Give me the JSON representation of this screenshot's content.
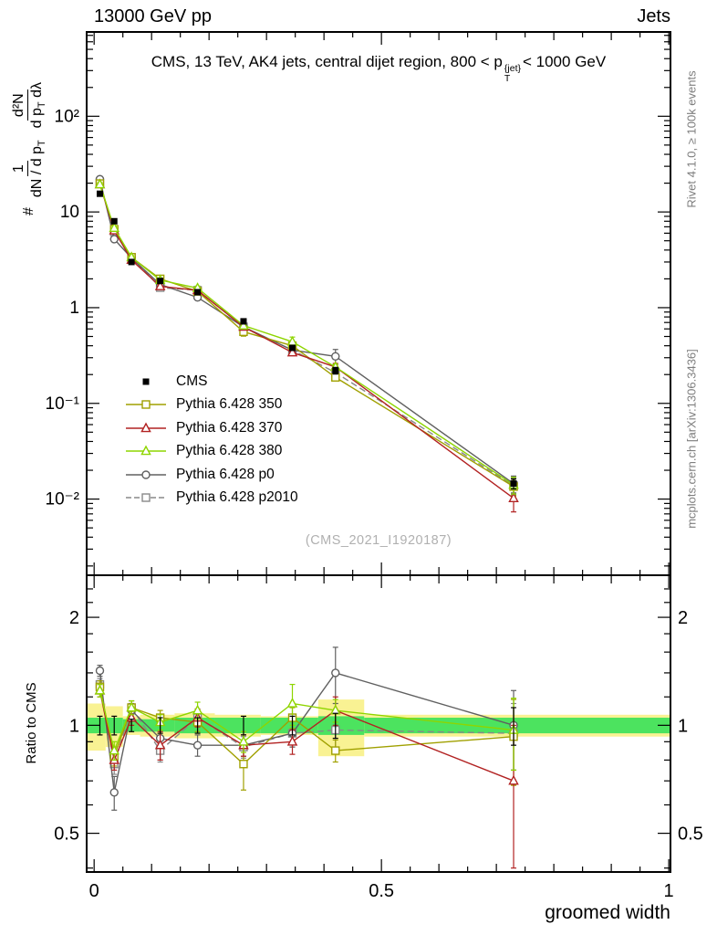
{
  "header": {
    "left": "13000 GeV pp",
    "right": "Jets"
  },
  "title": {
    "pre": "CMS, 13 TeV, AK4 jets, central dijet region, 800 < p",
    "sup": "{jet}",
    "sub": "T",
    "post": "< 1000 GeV"
  },
  "ylabel": {
    "prefix": "#",
    "f1num": "1",
    "f1den": "dN / d p",
    "f1densub": "T",
    "f2num": "d²N",
    "f2den": "d p",
    "f2densub": "T",
    "f2denpost": " dλ"
  },
  "labels": {
    "ratio_y": "Ratio to CMS",
    "x": "groomed width"
  },
  "watermark": "(CMS_2021_I1920187)",
  "side_notes": {
    "rivet": "Rivet 4.1.0, ≥ 100k events",
    "mcplots": "mcplots.cern.ch [arXiv:1306.3436]"
  },
  "chart_data": [
    {
      "type": "line",
      "panel": "main",
      "x": [
        0.01,
        0.035,
        0.065,
        0.115,
        0.18,
        0.26,
        0.345,
        0.42,
        0.73
      ],
      "x_range": [
        0,
        1
      ],
      "x_tick_labels": [
        "0",
        "0.5",
        "1"
      ],
      "y_scale": "log",
      "y_range": [
        0.0016,
        760
      ],
      "y_tick_labels": {
        "-2": "10⁻²",
        "-1": "10⁻¹",
        "0": "1",
        "1": "10",
        "2": "10²"
      },
      "series": [
        {
          "id": "cms",
          "name": "CMS",
          "marker": "filled-square",
          "color": "#000000",
          "line": "none",
          "values": [
            15.5,
            8.0,
            3.0,
            1.9,
            1.45,
            0.72,
            0.38,
            0.22,
            0.0145
          ],
          "err_rel": [
            0.05,
            0.05,
            0.04,
            0.04,
            0.05,
            0.06,
            0.06,
            0.08,
            0.12
          ]
        },
        {
          "id": "py350",
          "name": "Pythia 6.428 350",
          "marker": "open-square",
          "color": "#a0a000",
          "line": "solid",
          "values": [
            19.8,
            6.6,
            3.36,
            2.0,
            1.48,
            0.56,
            0.4,
            0.187,
            0.0135
          ],
          "err_rel": [
            0.04,
            0.05,
            0.04,
            0.05,
            0.05,
            0.1,
            0.07,
            0.06,
            0.2
          ]
        },
        {
          "id": "py370",
          "name": "Pythia 6.428 370",
          "marker": "open-triangle",
          "color": "#b22222",
          "line": "solid",
          "values": [
            19.4,
            6.4,
            3.15,
            1.67,
            1.52,
            0.63,
            0.34,
            0.24,
            0.0102
          ],
          "err_rel": [
            0.04,
            0.05,
            0.04,
            0.07,
            0.05,
            0.05,
            0.07,
            0.09,
            0.28
          ]
        },
        {
          "id": "py380",
          "name": "Pythia 6.428 380",
          "marker": "open-triangle",
          "color": "#8ed500",
          "line": "solid",
          "values": [
            19.4,
            6.8,
            3.36,
            1.94,
            1.6,
            0.65,
            0.44,
            0.24,
            0.0141
          ],
          "err_rel": [
            0.04,
            0.05,
            0.04,
            0.05,
            0.05,
            0.05,
            0.12,
            0.07,
            0.2
          ]
        },
        {
          "id": "pyp0",
          "name": "Pythia 6.428 p0",
          "marker": "open-circle",
          "color": "#606060",
          "line": "solid",
          "values": [
            22.0,
            5.2,
            3.3,
            1.75,
            1.28,
            0.63,
            0.36,
            0.31,
            0.0145
          ],
          "err_rel": [
            0.04,
            0.06,
            0.04,
            0.1,
            0.05,
            0.05,
            0.07,
            0.18,
            0.2
          ]
        },
        {
          "id": "pyp2010",
          "name": "Pythia 6.428 p2010",
          "marker": "open-square",
          "color": "#888888",
          "line": "dashed",
          "values": [
            20.2,
            6.2,
            3.36,
            1.62,
            1.52,
            0.63,
            0.36,
            0.21,
            0.0138
          ],
          "err_rel": [
            0.04,
            0.05,
            0.04,
            0.05,
            0.05,
            0.05,
            0.07,
            0.1,
            0.2
          ]
        }
      ]
    },
    {
      "type": "line",
      "panel": "ratio",
      "y_scale": "log",
      "y_range": [
        0.39,
        2.62
      ],
      "y_ticks": [
        0.5,
        1,
        2
      ],
      "y_tick_labels": [
        "0.5",
        "1",
        "2"
      ],
      "y_minor_ticks": [
        0.4,
        0.6,
        0.7,
        0.8,
        0.9,
        1.2,
        1.4,
        1.6,
        1.8,
        2.2,
        2.4
      ],
      "bands": {
        "edges": [
          0,
          0.02,
          0.05,
          0.08,
          0.14,
          0.21,
          0.29,
          0.39,
          0.47,
          1.0
        ],
        "yellow_half": [
          0.15,
          0.13,
          0.06,
          0.07,
          0.08,
          0.07,
          0.06,
          0.18,
          0.07
        ],
        "green_half": [
          0.05,
          0.05,
          0.04,
          0.04,
          0.05,
          0.05,
          0.05,
          0.06,
          0.05
        ],
        "yellow": "#f9f293",
        "green": "#4ce35f"
      },
      "series": [
        {
          "id": "cms",
          "ratio": [
            1,
            1,
            1,
            1,
            1,
            1,
            1,
            1,
            1
          ],
          "err": [
            0.06,
            0.06,
            0.04,
            0.05,
            0.05,
            0.06,
            0.06,
            0.08,
            0.12
          ]
        },
        {
          "id": "py350",
          "ratio": [
            1.28,
            0.82,
            1.12,
            1.05,
            1.02,
            0.78,
            1.05,
            0.85,
            0.93
          ],
          "err": [
            0.05,
            0.05,
            0.05,
            0.05,
            0.06,
            0.12,
            0.07,
            0.06,
            0.25
          ]
        },
        {
          "id": "py370",
          "ratio": [
            1.25,
            0.8,
            1.05,
            0.88,
            1.05,
            0.88,
            0.9,
            1.1,
            0.7
          ],
          "err": [
            0.05,
            0.05,
            0.05,
            0.08,
            0.06,
            0.06,
            0.07,
            0.1,
            0.3
          ]
        },
        {
          "id": "py380",
          "ratio": [
            1.25,
            0.85,
            1.12,
            1.02,
            1.1,
            0.9,
            1.15,
            1.1,
            0.97
          ],
          "err": [
            0.05,
            0.05,
            0.05,
            0.05,
            0.06,
            0.06,
            0.15,
            0.08,
            0.22
          ]
        },
        {
          "id": "pyp0",
          "ratio": [
            1.42,
            0.65,
            1.1,
            0.92,
            0.88,
            0.88,
            0.95,
            1.4,
            1.0
          ],
          "err": [
            0.05,
            0.07,
            0.05,
            0.12,
            0.06,
            0.06,
            0.08,
            0.25,
            0.25
          ]
        },
        {
          "id": "pyp2010",
          "ratio": [
            1.3,
            0.78,
            1.12,
            0.85,
            1.05,
            0.87,
            0.95,
            0.97,
            0.95
          ],
          "err": [
            0.05,
            0.05,
            0.05,
            0.06,
            0.06,
            0.06,
            0.08,
            0.12,
            0.2
          ]
        }
      ]
    }
  ]
}
